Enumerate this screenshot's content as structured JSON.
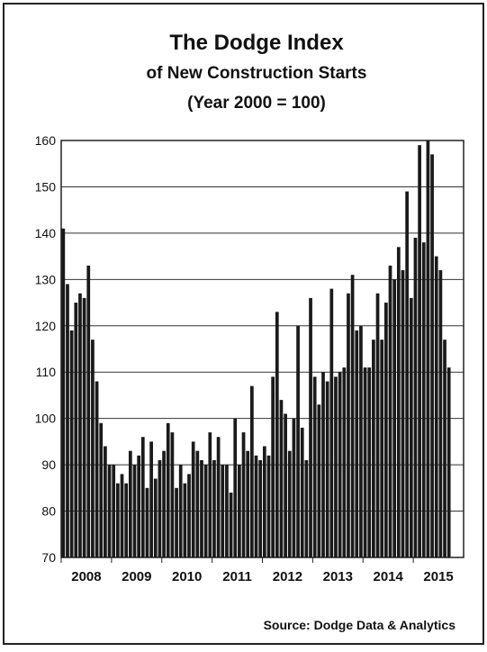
{
  "chart_data": {
    "type": "bar",
    "title": "The Dodge Index",
    "subtitle": [
      "of New Construction Starts",
      "(Year 2000 = 100)"
    ],
    "source": "Source:  Dodge Data & Analytics",
    "color": "#1a1a1a",
    "grid": true,
    "ylim": [
      70,
      160
    ],
    "yticks": [
      70,
      80,
      90,
      100,
      110,
      120,
      130,
      140,
      150,
      160
    ],
    "categories": [
      null,
      null,
      null,
      null,
      null,
      null,
      "2008",
      null,
      null,
      null,
      null,
      null,
      null,
      null,
      null,
      null,
      null,
      null,
      "2009",
      null,
      null,
      null,
      null,
      null,
      null,
      null,
      null,
      null,
      null,
      null,
      "2010",
      null,
      null,
      null,
      null,
      null,
      null,
      null,
      null,
      null,
      null,
      null,
      "2011",
      null,
      null,
      null,
      null,
      null,
      null,
      null,
      null,
      null,
      null,
      null,
      "2012",
      null,
      null,
      null,
      null,
      null,
      null,
      null,
      null,
      null,
      null,
      null,
      "2013",
      null,
      null,
      null,
      null,
      null,
      null,
      null,
      null,
      null,
      null,
      null,
      "2014",
      null,
      null,
      null,
      null,
      null,
      null,
      null,
      null,
      null,
      null,
      null,
      "2015",
      null,
      null
    ],
    "values": [
      141,
      129,
      119,
      125,
      127,
      126,
      133,
      117,
      108,
      99,
      94,
      90,
      90,
      86,
      88,
      86,
      93,
      90,
      92,
      96,
      85,
      95,
      87,
      91,
      93,
      99,
      97,
      85,
      90,
      86,
      88,
      95,
      93,
      91,
      90,
      97,
      91,
      96,
      90,
      90,
      84,
      100,
      90,
      97,
      93,
      107,
      92,
      91,
      94,
      92,
      109,
      123,
      104,
      101,
      93,
      100,
      120,
      98,
      91,
      126,
      109,
      103,
      110,
      108,
      128,
      109,
      110,
      111,
      127,
      131,
      119,
      120,
      111,
      111,
      117,
      127,
      117,
      125,
      133,
      130,
      137,
      132,
      149,
      126,
      139,
      159,
      138,
      160,
      157,
      135,
      132,
      117,
      111
    ]
  }
}
